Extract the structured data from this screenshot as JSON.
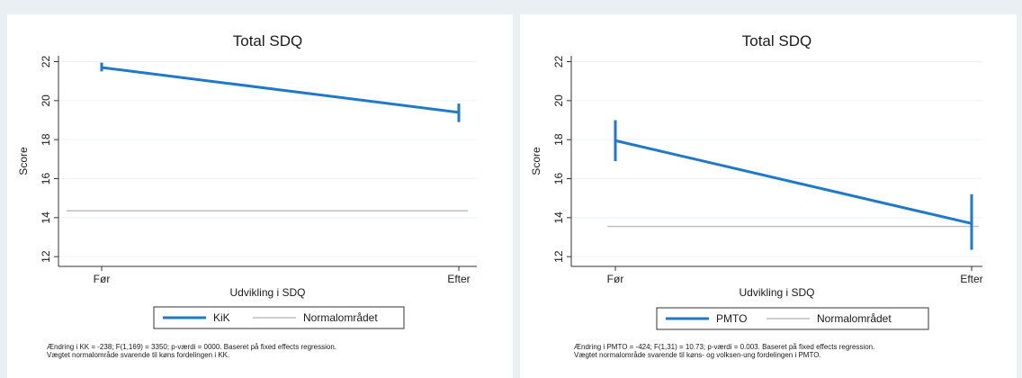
{
  "chart_data": [
    {
      "type": "line",
      "title": "Total SDQ",
      "xlabel": "Udvikling i SDQ",
      "ylabel": "Score",
      "categories": [
        "Før",
        "Efter"
      ],
      "ylim": [
        11.5,
        22.3
      ],
      "yticks": [
        12,
        14,
        16,
        18,
        20,
        22
      ],
      "series": [
        {
          "name": "KiK",
          "color": "#1f78c8",
          "values": [
            21.7,
            19.4
          ],
          "ci_low": [
            21.5,
            18.9
          ],
          "ci_high": [
            21.95,
            19.85
          ]
        },
        {
          "name": "Normalområdet",
          "color": "#bdbdbd",
          "values": [
            14.35,
            14.35
          ]
        }
      ],
      "legend": [
        "KiK",
        "Normalområdet"
      ],
      "legend_position": "bottom",
      "grid": true,
      "notes": [
        "Ændring i KK = -238; F(1,169) = 3350; p-værdi = 0000. Baseret på fixed effects regression.",
        "Vægtet normalområde svarende til køns fordelingen i KK."
      ]
    },
    {
      "type": "line",
      "title": "Total SDQ",
      "xlabel": "Udvikling i SDQ",
      "ylabel": "Score",
      "categories": [
        "Før",
        "Efter"
      ],
      "ylim": [
        11.5,
        22.3
      ],
      "yticks": [
        12,
        14,
        16,
        18,
        20,
        22
      ],
      "series": [
        {
          "name": "PMTO",
          "color": "#1f78c8",
          "values": [
            17.95,
            13.7
          ],
          "ci_low": [
            16.9,
            12.35
          ],
          "ci_high": [
            19.0,
            15.2
          ]
        },
        {
          "name": "Normalområdet",
          "color": "#bdbdbd",
          "values": [
            13.55,
            13.55
          ]
        }
      ],
      "legend": [
        "PMTO",
        "Normalområdet"
      ],
      "legend_position": "bottom",
      "grid": true,
      "notes": [
        "Ændring i PMTO = -424; F(1,31) = 10.73; p-værdi = 0.003. Baseret på fixed effects regression.",
        "Vægtet normalområde svarende til køns- og volksen-ung fordelingen i PMTO."
      ]
    }
  ]
}
